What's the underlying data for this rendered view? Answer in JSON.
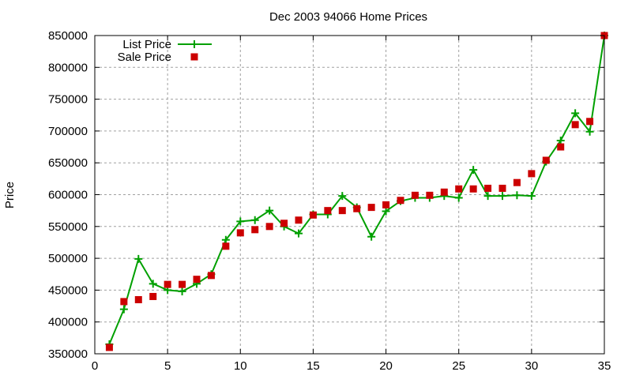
{
  "chart_data": {
    "type": "line",
    "title": "Dec 2003 94066 Home Prices",
    "xlabel": "",
    "ylabel": "Price",
    "xlim": [
      0,
      35
    ],
    "ylim": [
      350000,
      850000
    ],
    "xticks": [
      0,
      5,
      10,
      15,
      20,
      25,
      30,
      35
    ],
    "yticks": [
      350000,
      400000,
      450000,
      500000,
      550000,
      600000,
      650000,
      700000,
      750000,
      800000,
      850000
    ],
    "grid": true,
    "legend_position": "top-left",
    "x": [
      1,
      2,
      3,
      4,
      5,
      6,
      7,
      8,
      9,
      10,
      11,
      12,
      13,
      14,
      15,
      16,
      17,
      18,
      19,
      20,
      21,
      22,
      23,
      24,
      25,
      26,
      27,
      28,
      29,
      30,
      31,
      32,
      33,
      34,
      35
    ],
    "series": [
      {
        "name": "List Price",
        "style": "linespoints",
        "color": "#00a000",
        "marker": "plus",
        "values": [
          365000,
          420000,
          499000,
          460000,
          450000,
          448000,
          460000,
          475000,
          529000,
          558000,
          560000,
          575000,
          550000,
          539000,
          569000,
          569000,
          598000,
          580000,
          534000,
          574000,
          590000,
          595000,
          595000,
          598000,
          595000,
          639000,
          598000,
          598000,
          599000,
          598000,
          652000,
          685000,
          728000,
          699000,
          850000
        ]
      },
      {
        "name": "Sale Price",
        "style": "points",
        "color": "#cc0000",
        "marker": "square",
        "values": [
          360000,
          432000,
          435000,
          440000,
          459000,
          459000,
          467000,
          473000,
          519000,
          540000,
          545000,
          550000,
          555000,
          560000,
          568000,
          575000,
          575000,
          578000,
          580000,
          584000,
          591000,
          599000,
          599000,
          604000,
          609000,
          609000,
          610000,
          610000,
          619000,
          633000,
          654000,
          675000,
          710000,
          715000,
          850000
        ]
      }
    ]
  }
}
